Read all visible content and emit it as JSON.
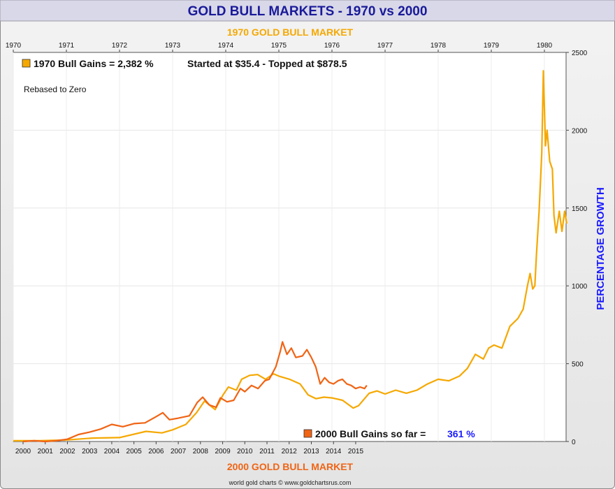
{
  "header": {
    "title": "GOLD BULL MARKETS - 1970 vs 2000",
    "subtitle_top": "1970 GOLD BULL MARKET",
    "subtitle_bottom": "2000 GOLD BULL MARKET",
    "footer": "world gold charts © www.goldchartsrus.com"
  },
  "annotations": {
    "legend_1970": "1970 Bull Gains = 2,382 %",
    "started_topped": "Started at $35.4 - Topped at $878.5",
    "rebased": "Rebased to Zero",
    "legend_2000": "2000 Bull Gains so far =",
    "legend_2000_value": "361 %"
  },
  "colors": {
    "series_1970": "#f5a800",
    "series_2000": "#f06414",
    "title": "#1a1a9a",
    "ylabel": "#1a1aff",
    "value_2000": "#1a1aff"
  },
  "chart_data": {
    "type": "line",
    "title": "GOLD BULL MARKETS - 1970 vs 2000",
    "ylabel": "PERCENTAGE GROWTH",
    "ylim": [
      0,
      2500
    ],
    "yticks": [
      0,
      500,
      1000,
      1500,
      2000,
      2500
    ],
    "grid": true,
    "legend_position": "top-left",
    "top_axis": {
      "label": "1970 GOLD BULL MARKET",
      "ticks": [
        "1970",
        "1971",
        "1972",
        "1973",
        "1974",
        "1975",
        "1976",
        "1977",
        "1978",
        "1979",
        "1980"
      ]
    },
    "bottom_axis": {
      "label": "2000 GOLD BULL MARKET",
      "ticks": [
        "2000",
        "2001",
        "2002",
        "2003",
        "2004",
        "2005",
        "2006",
        "2007",
        "2008",
        "2009",
        "2010",
        "2011",
        "2012",
        "2013",
        "2014",
        "2015"
      ]
    },
    "series": [
      {
        "name": "1970 Bull Gains = 2,382 %",
        "axis": "top",
        "points": [
          [
            1970.0,
            5
          ],
          [
            1970.5,
            5
          ],
          [
            1971.0,
            10
          ],
          [
            1971.5,
            22
          ],
          [
            1972.0,
            25
          ],
          [
            1972.5,
            65
          ],
          [
            1972.8,
            55
          ],
          [
            1973.0,
            75
          ],
          [
            1973.25,
            110
          ],
          [
            1973.45,
            185
          ],
          [
            1973.6,
            260
          ],
          [
            1973.8,
            205
          ],
          [
            1973.95,
            300
          ],
          [
            1974.05,
            350
          ],
          [
            1974.2,
            330
          ],
          [
            1974.3,
            400
          ],
          [
            1974.45,
            425
          ],
          [
            1974.6,
            430
          ],
          [
            1974.75,
            400
          ],
          [
            1974.9,
            435
          ],
          [
            1975.0,
            420
          ],
          [
            1975.2,
            400
          ],
          [
            1975.4,
            370
          ],
          [
            1975.55,
            300
          ],
          [
            1975.7,
            275
          ],
          [
            1975.85,
            285
          ],
          [
            1976.0,
            280
          ],
          [
            1976.2,
            265
          ],
          [
            1976.4,
            215
          ],
          [
            1976.5,
            230
          ],
          [
            1976.7,
            310
          ],
          [
            1976.85,
            325
          ],
          [
            1977.0,
            305
          ],
          [
            1977.2,
            330
          ],
          [
            1977.4,
            310
          ],
          [
            1977.6,
            330
          ],
          [
            1977.8,
            370
          ],
          [
            1978.0,
            400
          ],
          [
            1978.2,
            390
          ],
          [
            1978.4,
            420
          ],
          [
            1978.55,
            470
          ],
          [
            1978.7,
            560
          ],
          [
            1978.85,
            530
          ],
          [
            1978.95,
            600
          ],
          [
            1979.05,
            620
          ],
          [
            1979.2,
            600
          ],
          [
            1979.35,
            740
          ],
          [
            1979.5,
            790
          ],
          [
            1979.6,
            850
          ],
          [
            1979.68,
            1000
          ],
          [
            1979.73,
            1080
          ],
          [
            1979.78,
            980
          ],
          [
            1979.82,
            1000
          ],
          [
            1979.85,
            1200
          ],
          [
            1979.9,
            1480
          ],
          [
            1979.95,
            1850
          ],
          [
            1979.98,
            2382
          ],
          [
            1980.02,
            1900
          ],
          [
            1980.05,
            2000
          ],
          [
            1980.1,
            1800
          ],
          [
            1980.15,
            1750
          ],
          [
            1980.18,
            1450
          ],
          [
            1980.22,
            1340
          ],
          [
            1980.28,
            1480
          ],
          [
            1980.33,
            1350
          ],
          [
            1980.38,
            1480
          ],
          [
            1980.42,
            1400
          ]
        ]
      },
      {
        "name": "2000 Bull Gains so far = 361 %",
        "axis": "bottom",
        "points": [
          [
            2000.0,
            0
          ],
          [
            2000.5,
            5
          ],
          [
            2001.0,
            0
          ],
          [
            2001.5,
            5
          ],
          [
            2002.0,
            15
          ],
          [
            2002.5,
            45
          ],
          [
            2003.0,
            60
          ],
          [
            2003.5,
            80
          ],
          [
            2004.0,
            110
          ],
          [
            2004.5,
            95
          ],
          [
            2005.0,
            115
          ],
          [
            2005.5,
            120
          ],
          [
            2006.0,
            160
          ],
          [
            2006.3,
            185
          ],
          [
            2006.6,
            140
          ],
          [
            2007.0,
            150
          ],
          [
            2007.5,
            165
          ],
          [
            2007.85,
            250
          ],
          [
            2008.1,
            285
          ],
          [
            2008.4,
            235
          ],
          [
            2008.7,
            220
          ],
          [
            2008.9,
            280
          ],
          [
            2009.2,
            255
          ],
          [
            2009.5,
            265
          ],
          [
            2009.8,
            340
          ],
          [
            2010.0,
            320
          ],
          [
            2010.3,
            360
          ],
          [
            2010.6,
            340
          ],
          [
            2010.9,
            390
          ],
          [
            2011.1,
            400
          ],
          [
            2011.4,
            480
          ],
          [
            2011.6,
            580
          ],
          [
            2011.7,
            640
          ],
          [
            2011.9,
            560
          ],
          [
            2012.1,
            600
          ],
          [
            2012.3,
            540
          ],
          [
            2012.6,
            550
          ],
          [
            2012.8,
            590
          ],
          [
            2013.0,
            540
          ],
          [
            2013.2,
            480
          ],
          [
            2013.4,
            370
          ],
          [
            2013.6,
            410
          ],
          [
            2013.8,
            380
          ],
          [
            2014.0,
            370
          ],
          [
            2014.2,
            390
          ],
          [
            2014.4,
            400
          ],
          [
            2014.6,
            370
          ],
          [
            2014.8,
            360
          ],
          [
            2015.0,
            340
          ],
          [
            2015.2,
            350
          ],
          [
            2015.4,
            340
          ],
          [
            2015.5,
            361
          ]
        ]
      }
    ]
  }
}
